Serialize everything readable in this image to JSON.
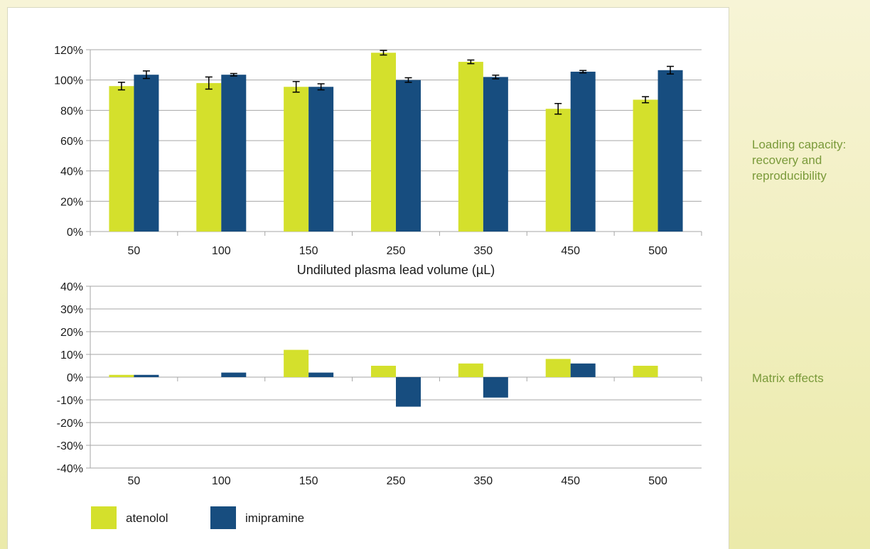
{
  "side_labels": {
    "recovery": "Loading capacity:\nrecovery and\nreproducibility",
    "matrix": "Matrix effects"
  },
  "colors": {
    "atenolol": "#d4e02c",
    "imipramine": "#174d7f",
    "grid": "#a6a6a6",
    "accent_text": "#7a9a3a"
  },
  "chart_data": [
    {
      "type": "bar",
      "categories": [
        "50",
        "100",
        "150",
        "250",
        "350",
        "450",
        "500"
      ],
      "xlabel": "Undiluted plasma lead volume (µL)",
      "ylabel": "",
      "ylim": [
        0,
        120
      ],
      "yticks": [
        "0%",
        "20%",
        "40%",
        "60%",
        "80%",
        "100%",
        "120%"
      ],
      "grid": true,
      "error_bars": true,
      "series": [
        {
          "name": "atenolol",
          "values": [
            96,
            98,
            95.5,
            118,
            112,
            81,
            87
          ],
          "errors": [
            2.5,
            4,
            3.5,
            1.5,
            1.2,
            3.5,
            2
          ]
        },
        {
          "name": "imipramine",
          "values": [
            103.5,
            103.5,
            95.5,
            100,
            102,
            105.5,
            106.5
          ],
          "errors": [
            2.5,
            0.8,
            2,
            1.5,
            1.2,
            0.8,
            2.5
          ]
        }
      ]
    },
    {
      "type": "bar",
      "categories": [
        "50",
        "100",
        "150",
        "250",
        "350",
        "450",
        "500"
      ],
      "xlabel": "",
      "ylabel": "",
      "ylim": [
        -40,
        40
      ],
      "yticks": [
        "-40%",
        "-30%",
        "-20%",
        "-10%",
        "0%",
        "10%",
        "20%",
        "30%",
        "40%"
      ],
      "grid": true,
      "legend_position": "bottom-left",
      "series": [
        {
          "name": "atenolol",
          "values": [
            1,
            0,
            12,
            5,
            6,
            8,
            5
          ]
        },
        {
          "name": "imipramine",
          "values": [
            1,
            2,
            2,
            -13,
            -9,
            6,
            0
          ]
        }
      ]
    }
  ]
}
